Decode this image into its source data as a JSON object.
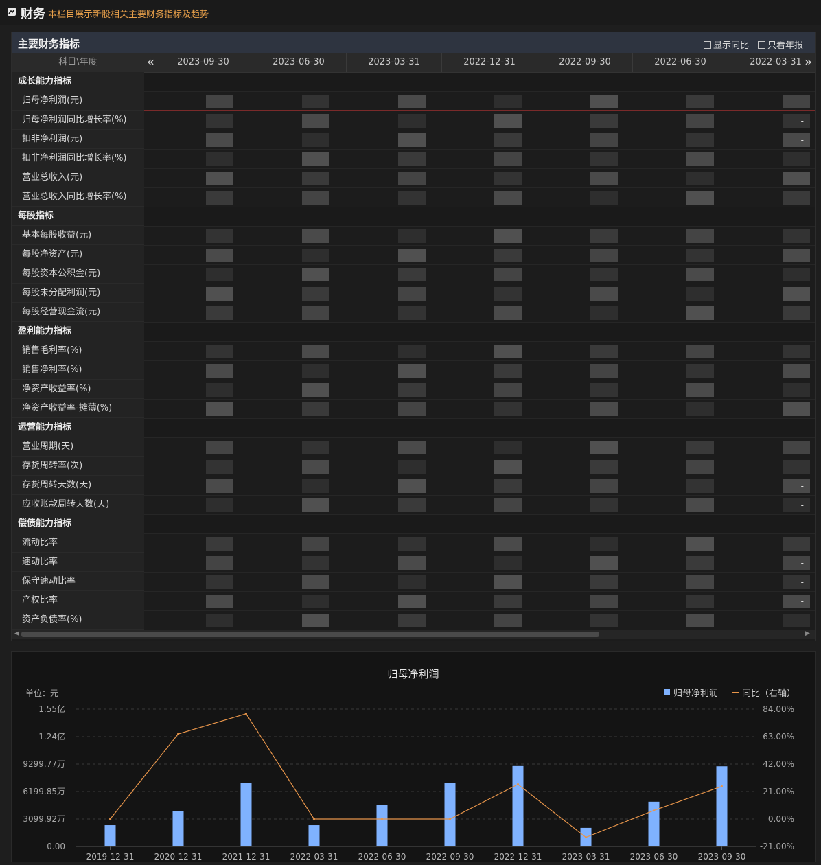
{
  "header": {
    "title": "财务",
    "subtitle": "本栏目展示新股相关主要财务指标及趋势"
  },
  "panel": {
    "title": "主要财务指标",
    "option_yoy": "显示同比",
    "option_annual": "只看年报",
    "column_header": "科目\\年度",
    "dates": [
      "2023-09-30",
      "2023-06-30",
      "2023-03-31",
      "2022-12-31",
      "2022-09-30",
      "2022-06-30",
      "2022-03-31"
    ],
    "prev_icon": "double-left-arrow-icon",
    "next_icon": "double-right-arrow-icon",
    "rows": [
      {
        "type": "section",
        "label": "成长能力指标"
      },
      {
        "type": "item",
        "label": "归母净利润(元)"
      },
      {
        "type": "item",
        "label": "归母净利润同比增长率(%)",
        "tail": "-"
      },
      {
        "type": "item",
        "label": "扣非净利润(元)",
        "tail": "-"
      },
      {
        "type": "item",
        "label": "扣非净利润同比增长率(%)"
      },
      {
        "type": "item",
        "label": "营业总收入(元)"
      },
      {
        "type": "item",
        "label": "营业总收入同比增长率(%)"
      },
      {
        "type": "section",
        "label": "每股指标"
      },
      {
        "type": "item",
        "label": "基本每股收益(元)"
      },
      {
        "type": "item",
        "label": "每股净资产(元)"
      },
      {
        "type": "item",
        "label": "每股资本公积金(元)"
      },
      {
        "type": "item",
        "label": "每股未分配利润(元)"
      },
      {
        "type": "item",
        "label": "每股经营现金流(元)"
      },
      {
        "type": "section",
        "label": "盈利能力指标"
      },
      {
        "type": "item",
        "label": "销售毛利率(%)"
      },
      {
        "type": "item",
        "label": "销售净利率(%)"
      },
      {
        "type": "item",
        "label": "净资产收益率(%)"
      },
      {
        "type": "item",
        "label": "净资产收益率-摊薄(%)"
      },
      {
        "type": "section",
        "label": "运营能力指标"
      },
      {
        "type": "item",
        "label": "营业周期(天)"
      },
      {
        "type": "item",
        "label": "存货周转率(次)"
      },
      {
        "type": "item",
        "label": "存货周转天数(天)",
        "tail": "-"
      },
      {
        "type": "item",
        "label": "应收账款周转天数(天)",
        "tail": "-"
      },
      {
        "type": "section",
        "label": "偿债能力指标"
      },
      {
        "type": "item",
        "label": "流动比率",
        "tail": "-"
      },
      {
        "type": "item",
        "label": "速动比率",
        "tail": "-"
      },
      {
        "type": "item",
        "label": "保守速动比率",
        "tail": "-"
      },
      {
        "type": "item",
        "label": "产权比率",
        "tail": "-"
      },
      {
        "type": "item",
        "label": "资产负债率(%)",
        "tail": "-"
      }
    ]
  },
  "chart_data": {
    "type": "bar",
    "title": "归母净利润",
    "unit_label": "单位：元",
    "categories": [
      "2019-12-31",
      "2020-12-31",
      "2021-12-31",
      "2022-03-31",
      "2022-06-30",
      "2022-09-30",
      "2022-12-31",
      "2023-03-31",
      "2023-06-30",
      "2023-09-30"
    ],
    "series": [
      {
        "name": "归母净利润",
        "axis": "left",
        "type": "bar",
        "color": "#7fb2ff",
        "values": [
          24000000,
          40000000,
          71500000,
          24000000,
          47000000,
          71500000,
          90800000,
          21000000,
          50500000,
          90500000
        ]
      },
      {
        "name": "同比（右轴）",
        "axis": "right",
        "type": "line",
        "color": "#e8954a",
        "values": [
          0.0,
          65.0,
          80.5,
          0.0,
          0.0,
          0.0,
          26.5,
          -14.0,
          6.5,
          25.0
        ]
      }
    ],
    "y_left": {
      "min": 0,
      "max": 155000000,
      "ticks": [
        0,
        30999200,
        61998500,
        92997700,
        124000000,
        155000000
      ],
      "tick_labels": [
        "0.00",
        "3099.92万",
        "6199.85万",
        "9299.77万",
        "1.24亿",
        "1.55亿"
      ]
    },
    "y_right": {
      "min": -21,
      "max": 84,
      "ticks": [
        -21,
        0,
        21,
        42,
        63,
        84
      ],
      "tick_labels": [
        "-21.00%",
        "0.00%",
        "21.00%",
        "42.00%",
        "63.00%",
        "84.00%"
      ]
    },
    "legend_position": "top-right",
    "grid": true
  }
}
